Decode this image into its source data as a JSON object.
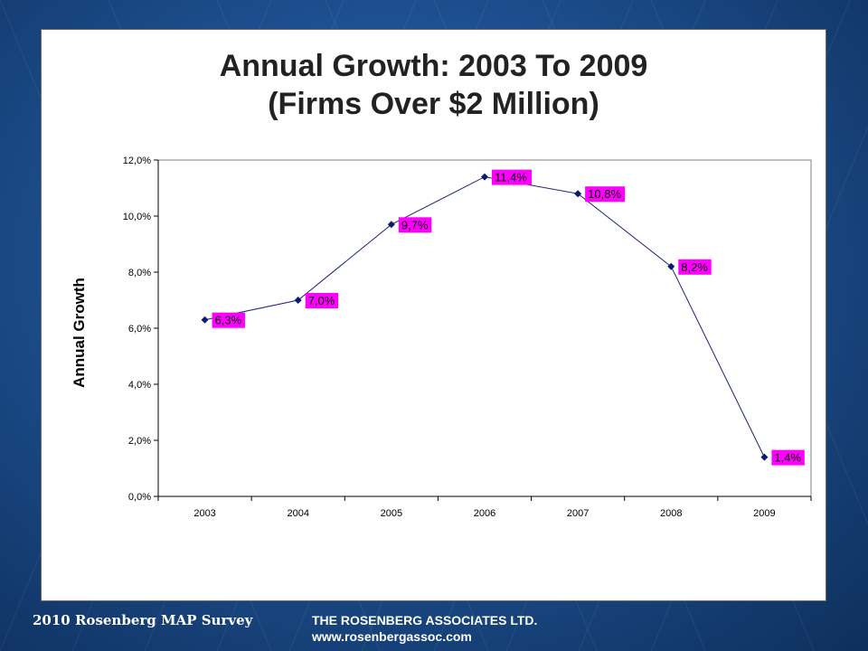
{
  "slide": {
    "footer_left": "2010 Rosenberg MAP Survey",
    "footer_company": "THE ROSENBERG ASSOCIATES LTD.",
    "footer_url": "www.rosenbergassoc.com"
  },
  "colors": {
    "line": "#1a237e",
    "marker": "#0a1a6e",
    "label_bg": "#ff00ff",
    "gridline": "#000000"
  },
  "chart_data": {
    "type": "line",
    "title_line1": "Annual Growth:  2003 To 2009",
    "title_line2": "(Firms Over $2 Million)",
    "xlabel": "",
    "ylabel": "Annual Growth",
    "categories": [
      "2003",
      "2004",
      "2005",
      "2006",
      "2007",
      "2008",
      "2009"
    ],
    "values": [
      6.3,
      7.0,
      9.7,
      11.4,
      10.8,
      8.2,
      1.4
    ],
    "data_labels": [
      "6,3%",
      "7,0%",
      "9,7%",
      "11,4%",
      "10,8%",
      "8,2%",
      "1,4%"
    ],
    "ylim": [
      0,
      12
    ],
    "yticks": [
      "0,0%",
      "2,0%",
      "4,0%",
      "6,0%",
      "8,0%",
      "10,0%",
      "12,0%"
    ],
    "grid": false,
    "legend": "none"
  }
}
